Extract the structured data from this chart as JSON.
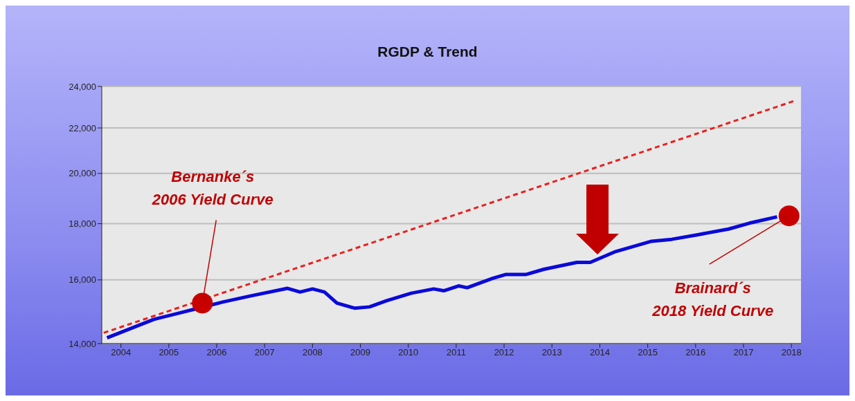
{
  "chart_data": {
    "type": "line",
    "title": "RGDP & Trend",
    "xlim": [
      2004.1,
      2018.7
    ],
    "xticks": [
      {
        "value": 2004.5,
        "label": "2004"
      },
      {
        "value": 2005.5,
        "label": "2005"
      },
      {
        "value": 2006.5,
        "label": "2006"
      },
      {
        "value": 2007.5,
        "label": "2007"
      },
      {
        "value": 2008.5,
        "label": "2008"
      },
      {
        "value": 2009.5,
        "label": "2009"
      },
      {
        "value": 2010.5,
        "label": "2010"
      },
      {
        "value": 2011.5,
        "label": "2011"
      },
      {
        "value": 2012.5,
        "label": "2012"
      },
      {
        "value": 2013.5,
        "label": "2013"
      },
      {
        "value": 2014.5,
        "label": "2014"
      },
      {
        "value": 2015.5,
        "label": "2015"
      },
      {
        "value": 2016.5,
        "label": "2016"
      },
      {
        "value": 2017.5,
        "label": "2017"
      },
      {
        "value": 2018.5,
        "label": "2018"
      }
    ],
    "ylim": [
      14000,
      24000
    ],
    "yticks": [
      {
        "value": 14000,
        "label": "14,000"
      },
      {
        "value": 16000,
        "label": "16,000"
      },
      {
        "value": 18000,
        "label": "18,000"
      },
      {
        "value": 20000,
        "label": "20,000"
      },
      {
        "value": 22000,
        "label": "22,000"
      },
      {
        "value": 24000,
        "label": "24,000"
      }
    ],
    "log": "y",
    "grid": "y",
    "series": [
      {
        "color": "#0a0ad8",
        "line_style": "solid",
        "x": [
          2004.21,
          2005.19,
          2006.02,
          2006.64,
          2007.2,
          2007.98,
          2008.24,
          2008.5,
          2008.75,
          2009.01,
          2009.38,
          2009.69,
          2010.05,
          2010.56,
          2011.03,
          2011.24,
          2011.55,
          2011.73,
          2012.26,
          2012.53,
          2012.95,
          2013.33,
          2014.02,
          2014.3,
          2014.83,
          2015.58,
          2016.0,
          2016.55,
          2017.19,
          2017.62,
          2018.2
        ],
        "values": [
          14170,
          14730,
          15040,
          15280,
          15470,
          15720,
          15600,
          15700,
          15600,
          15240,
          15080,
          15120,
          15320,
          15560,
          15700,
          15640,
          15800,
          15740,
          16050,
          16180,
          16180,
          16360,
          16600,
          16600,
          16980,
          17350,
          17420,
          17590,
          17800,
          18020,
          18260
        ]
      },
      {
        "color": "#e8201e",
        "line_style": "dashed",
        "x": [
          2004.14,
          2018.57
        ],
        "values": [
          14320,
          23290
        ]
      },
      {
        "type": "scatter",
        "marker": "circle",
        "color": "#c80000",
        "x": [
          2006.2,
          2018.45
        ],
        "values": [
          15240,
          18300
        ]
      }
    ],
    "annotations": [
      {
        "text": "Bernanke´s\n2006 Yield Curve",
        "x": 2006.2,
        "y": 15240
      },
      {
        "text": "Brainard´s\n2018 Yield Curve",
        "x": 2018.45,
        "y": 18300
      }
    ]
  }
}
